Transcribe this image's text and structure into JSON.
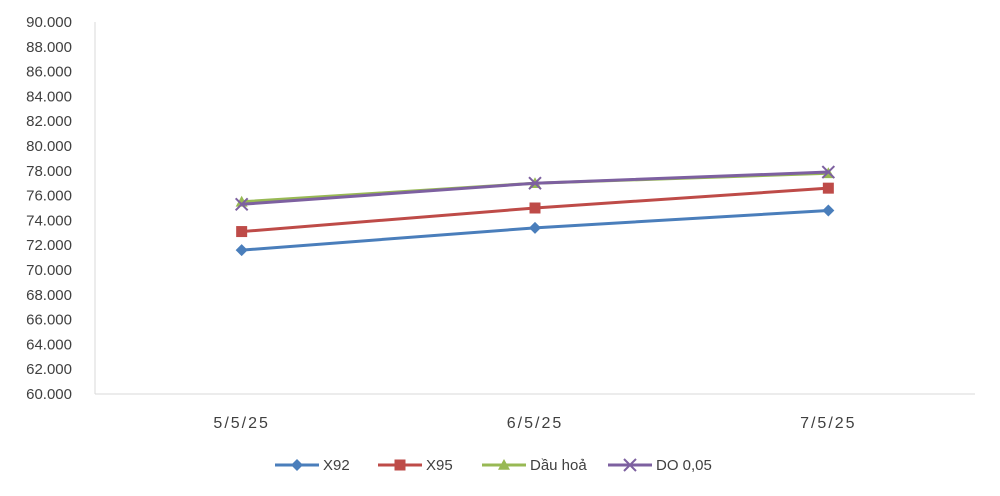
{
  "chart_data": {
    "type": "line",
    "categories": [
      "5/5/25",
      "6/5/25",
      "7/5/25"
    ],
    "series": [
      {
        "name": "X92",
        "values": [
          71600,
          73400,
          74800
        ],
        "color": "#4a7ebb",
        "marker": "diamond"
      },
      {
        "name": "X95",
        "values": [
          73100,
          75000,
          76600
        ],
        "color": "#be4b48",
        "marker": "square"
      },
      {
        "name": "Dầu hoả",
        "values": [
          75500,
          77000,
          77800
        ],
        "color": "#98b954",
        "marker": "triangle"
      },
      {
        "name": "DO 0,05",
        "values": [
          75300,
          77000,
          77900
        ],
        "color": "#7d60a0",
        "marker": "x"
      }
    ],
    "yticks": [
      "60.000",
      "62.000",
      "64.000",
      "66.000",
      "68.000",
      "70.000",
      "72.000",
      "74.000",
      "76.000",
      "78.000",
      "80.000",
      "82.000",
      "84.000",
      "86.000",
      "88.000",
      "90.000"
    ],
    "ylim": [
      60000,
      90000
    ],
    "legend": "bottom",
    "grid": false
  }
}
